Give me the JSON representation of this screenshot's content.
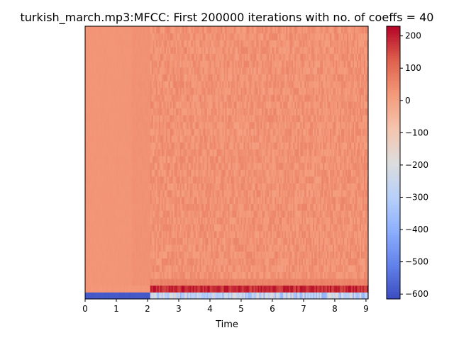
{
  "chart_data": {
    "type": "heatmap",
    "title": "turkish_march.mp3:MFCC: First 200000 iterations with no. of coeffs = 40",
    "xlabel": "Time",
    "ylabel": "",
    "xlim": [
      0,
      9.07
    ],
    "x_ticks": [
      "0",
      "1",
      "2",
      "3",
      "4",
      "5",
      "6",
      "7",
      "8",
      "9"
    ],
    "n_coefficients": 40,
    "silence_end_time": 2.07,
    "colormap": "coolwarm",
    "colorbar": {
      "vmin": -615,
      "vmax": 230,
      "ticks": [
        "200",
        "100",
        "0",
        "−100",
        "−200",
        "−300",
        "−400",
        "−500",
        "−600"
      ],
      "tick_values": [
        200,
        100,
        0,
        -100,
        -200,
        -300,
        -400,
        -500,
        -600
      ]
    },
    "typical_values": {
      "silence": {
        "coeff_0": -590,
        "coeff_1": 25,
        "others": 28
      },
      "music": {
        "coeff_0_range": [
          -400,
          -150
        ],
        "coeff_1_range": [
          150,
          225
        ],
        "coeff_2": 60,
        "others_range": [
          5,
          60
        ]
      }
    }
  }
}
